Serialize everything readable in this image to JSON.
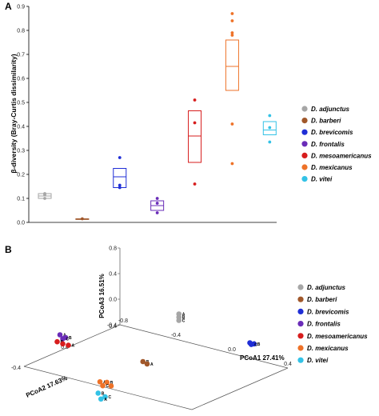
{
  "figure": {
    "panel_a_label": "A",
    "panel_b_label": "B"
  },
  "legend_entries": [
    {
      "name": "D. adjunctus",
      "color": "#a6a6a6"
    },
    {
      "name": "D. barberi",
      "color": "#a0572a"
    },
    {
      "name": "D. brevicomis",
      "color": "#1f2ed6"
    },
    {
      "name": "D. frontalis",
      "color": "#6a2cb8"
    },
    {
      "name": "D. mesoamericanus",
      "color": "#d71d1d"
    },
    {
      "name": "D. mexicanus",
      "color": "#ee7228"
    },
    {
      "name": "D. vitei",
      "color": "#33c2e6"
    }
  ],
  "chart_data": [
    {
      "type": "boxplot",
      "panel": "A",
      "ylabel": "β-diversity (Bray-Curtis dissimilarity)",
      "xlabel": "",
      "ylim": [
        0,
        0.9
      ],
      "yticks": [
        "0.0",
        "0.1",
        "0.2",
        "0.3",
        "0.4",
        "0.5",
        "0.6",
        "0.7",
        "0.8",
        "0.9"
      ],
      "grid": false,
      "legend": "right",
      "series": [
        {
          "name": "D. adjunctus",
          "points": [
            0.12,
            0.1,
            0.115
          ],
          "q1": 0.1,
          "median": 0.11,
          "q3": 0.12
        },
        {
          "name": "D. barberi",
          "points": [
            0.015
          ],
          "q1": 0.015,
          "median": 0.015,
          "q3": 0.015
        },
        {
          "name": "D. brevicomis",
          "points": [
            0.27,
            0.155,
            0.145
          ],
          "q1": 0.145,
          "median": 0.19,
          "q3": 0.225
        },
        {
          "name": "D. frontalis",
          "points": [
            0.1,
            0.08,
            0.04
          ],
          "q1": 0.05,
          "median": 0.07,
          "q3": 0.09
        },
        {
          "name": "D. mesoamericanus",
          "points": [
            0.51,
            0.415,
            0.16
          ],
          "q1": 0.25,
          "median": 0.36,
          "q3": 0.465
        },
        {
          "name": "D. mexicanus",
          "points": [
            0.87,
            0.84,
            0.79,
            0.78,
            0.41,
            0.245
          ],
          "q1": 0.55,
          "median": 0.65,
          "q3": 0.76
        },
        {
          "name": "D. vitei",
          "points": [
            0.445,
            0.395,
            0.335
          ],
          "q1": 0.365,
          "median": 0.385,
          "q3": 0.42
        }
      ]
    },
    {
      "type": "scatter3d",
      "panel": "B",
      "axis_labels": {
        "pcoa1": "PCoA1  27.41%",
        "pcoa2": "PCoA2  17.63%",
        "pcoa3": "PCoA3  16.51%"
      },
      "tick_labels": {
        "pcoa3": [
          "0.8",
          "0.4",
          "0.0",
          "-0.4"
        ],
        "pcoa1": [
          "-0.8",
          "-0.4",
          "0.0",
          "0.4"
        ],
        "pcoa2": [
          "0.4",
          "0.0",
          "-0.4"
        ]
      },
      "legend": "right",
      "series": [
        {
          "name": "D. adjunctus",
          "points": [
            {
              "label": "A",
              "x": -0.25,
              "y": 0.25,
              "z": 0.2
            },
            {
              "label": "B",
              "x": -0.25,
              "y": 0.25,
              "z": 0.15
            },
            {
              "label": "C",
              "x": -0.25,
              "y": 0.25,
              "z": 0.1
            }
          ]
        },
        {
          "name": "D. barberi",
          "points": [
            {
              "label": "B",
              "x": -0.25,
              "y": -0.05,
              "z": -0.3
            },
            {
              "label": "A",
              "x": -0.22,
              "y": -0.05,
              "z": -0.32
            }
          ]
        },
        {
          "name": "D. brevicomis",
          "points": [
            {
              "label": "A",
              "x": 0.3,
              "y": 0.2,
              "z": 0.1
            },
            {
              "label": "B",
              "x": 0.33,
              "y": 0.2,
              "z": 0.1
            },
            {
              "label": "C",
              "x": 0.31,
              "y": 0.2,
              "z": 0.08
            }
          ]
        },
        {
          "name": "D. frontalis",
          "points": [
            {
              "label": "A",
              "x": -0.8,
              "y": -0.1,
              "z": -0.15
            },
            {
              "label": "B",
              "x": -0.76,
              "y": -0.1,
              "z": -0.17
            },
            {
              "label": "C",
              "x": -0.78,
              "y": -0.1,
              "z": -0.2
            }
          ]
        },
        {
          "name": "D. mesoamericanus",
          "points": [
            {
              "label": "B",
              "x": -0.82,
              "y": -0.1,
              "z": -0.27
            },
            {
              "label": "",
              "x": -0.78,
              "y": -0.1,
              "z": -0.28
            },
            {
              "label": "A",
              "x": -0.74,
              "y": -0.1,
              "z": -0.28
            }
          ]
        },
        {
          "name": "D. mexicanus",
          "points": [
            {
              "label": "A",
              "x": -0.3,
              "y": -0.35,
              "z": -0.4
            },
            {
              "label": "B",
              "x": -0.25,
              "y": -0.35,
              "z": -0.38
            },
            {
              "label": "C",
              "x": -0.28,
              "y": -0.35,
              "z": -0.45
            },
            {
              "label": "",
              "x": -0.22,
              "y": -0.35,
              "z": -0.42
            }
          ]
        },
        {
          "name": "D. vitei",
          "points": [
            {
              "label": "B",
              "x": -0.27,
              "y": -0.4,
              "z": -0.52
            },
            {
              "label": "C",
              "x": -0.22,
              "y": -0.4,
              "z": -0.55
            },
            {
              "label": "A",
              "x": -0.25,
              "y": -0.4,
              "z": -0.6
            }
          ]
        }
      ]
    }
  ]
}
